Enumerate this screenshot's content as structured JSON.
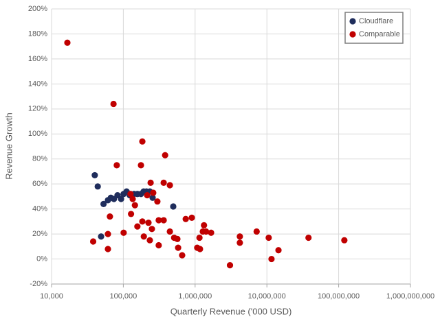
{
  "chart_data": {
    "type": "scatter",
    "x_label": "Quarterly Revenue ('000 USD)",
    "y_label": "Revenue Growth",
    "xscale": "log",
    "xlim": [
      10000,
      1000000000
    ],
    "xticks": [
      {
        "value": 10000,
        "label": "10,000"
      },
      {
        "value": 100000,
        "label": "100,000"
      },
      {
        "value": 1000000,
        "label": "1,000,000"
      },
      {
        "value": 10000000,
        "label": "10,000,000"
      },
      {
        "value": 100000000,
        "label": "100,000,000"
      },
      {
        "value": 1000000000,
        "label": "1,000,000,000"
      }
    ],
    "ylim": [
      -20,
      200
    ],
    "yticks": [
      {
        "value": -20,
        "label": "-20%"
      },
      {
        "value": 0,
        "label": "0%"
      },
      {
        "value": 20,
        "label": "20%"
      },
      {
        "value": 40,
        "label": "40%"
      },
      {
        "value": 60,
        "label": "60%"
      },
      {
        "value": 80,
        "label": "80%"
      },
      {
        "value": 100,
        "label": "100%"
      },
      {
        "value": 120,
        "label": "120%"
      },
      {
        "value": 140,
        "label": "140%"
      },
      {
        "value": 160,
        "label": "160%"
      },
      {
        "value": 180,
        "label": "180%"
      },
      {
        "value": 200,
        "label": "200%"
      }
    ],
    "grid": true,
    "legend": "top-right",
    "series": [
      {
        "name": "Cloudflare",
        "color": "#1f2d5c",
        "x": [
          40000,
          44000,
          49000,
          53000,
          61000,
          67000,
          74000,
          83000,
          93000,
          101000,
          111000,
          123000,
          141000,
          157000,
          176000,
          192000,
          210000,
          234000,
          256000,
          496000
        ],
        "values": [
          67,
          58,
          18,
          44,
          47,
          49,
          48,
          51,
          48,
          52,
          54,
          51,
          52,
          52,
          52,
          54,
          54,
          54,
          49,
          42
        ]
      },
      {
        "name": "Comparable",
        "color": "#c00000",
        "x": [
          16600,
          73000,
          184000,
          382000,
          81000,
          176000,
          365000,
          240000,
          445000,
          38000,
          61000,
          61000,
          65000,
          101000,
          126000,
          135000,
          215000,
          261000,
          298000,
          145000,
          128000,
          157000,
          184000,
          224000,
          193000,
          234000,
          250000,
          311000,
          365000,
          311000,
          445000,
          510000,
          566000,
          580000,
          660000,
          740000,
          900000,
          1070000,
          1170000,
          1150000,
          1330000,
          1280000,
          1420000,
          1670000,
          3060000,
          4200000,
          4200000,
          7200000,
          10600000,
          11600000,
          14500000,
          38000000,
          120000000
        ],
        "values": [
          173,
          124,
          94,
          83,
          75,
          75,
          61,
          61,
          59,
          14,
          20,
          8,
          34,
          21,
          52,
          48,
          51,
          53,
          46,
          43,
          36,
          26,
          30,
          29,
          18,
          15,
          24,
          31,
          31,
          11,
          22,
          17,
          16,
          9,
          3,
          32,
          33,
          9,
          8,
          17,
          27,
          22,
          22,
          21,
          -5,
          18,
          13,
          22,
          17,
          0,
          7,
          17,
          15
        ]
      }
    ]
  }
}
